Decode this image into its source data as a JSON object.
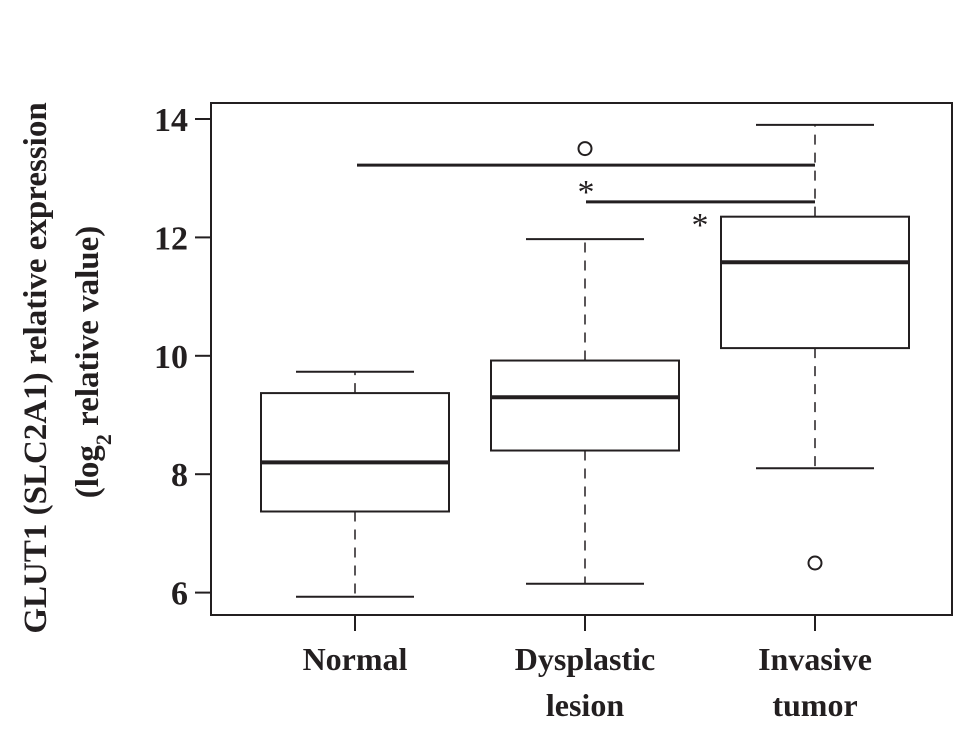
{
  "chart_data": {
    "type": "box",
    "ylabel_line1": "GLUT1 (SLC2A1) relative expression",
    "ylabel_line2_prefix": "(log",
    "ylabel_line2_sub": "2",
    "ylabel_line2_suffix": " relative value)",
    "ylim": [
      5.6,
      14.2
    ],
    "yticks": [
      6,
      8,
      10,
      12,
      14
    ],
    "categories": [
      {
        "label_lines": [
          "Normal"
        ],
        "min": 5.93,
        "q1": 7.37,
        "median": 8.2,
        "q3": 9.37,
        "max": 9.73,
        "outliers": []
      },
      {
        "label_lines": [
          "Dysplastic",
          "lesion"
        ],
        "min": 6.15,
        "q1": 8.4,
        "median": 9.3,
        "q3": 9.92,
        "max": 11.97,
        "outliers": [
          13.5
        ]
      },
      {
        "label_lines": [
          "Invasive",
          "tumor"
        ],
        "min": 8.1,
        "q1": 10.13,
        "median": 11.58,
        "q3": 12.35,
        "max": 13.9,
        "outliers": [
          6.5
        ]
      }
    ],
    "significance": [
      {
        "from": 0,
        "to": 2,
        "y": 13.22,
        "label": "*"
      },
      {
        "from": 1,
        "to": 2,
        "y": 12.6,
        "label": "*"
      }
    ]
  }
}
